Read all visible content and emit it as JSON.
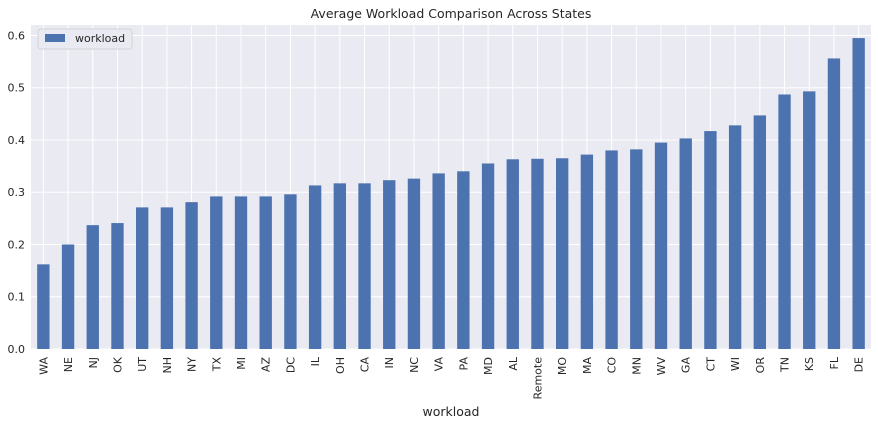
{
  "chart_data": {
    "type": "bar",
    "title": "Average Workload Comparison Across States",
    "xlabel": "workload",
    "ylabel": "",
    "ylim": [
      0,
      0.62
    ],
    "yticks": [
      "0.0",
      "0.1",
      "0.2",
      "0.3",
      "0.4",
      "0.5",
      "0.6"
    ],
    "grid": true,
    "legend": {
      "placement": "top-left",
      "entries": [
        "workload"
      ]
    },
    "categories": [
      "WA",
      "NE",
      "NJ",
      "OK",
      "UT",
      "NH",
      "NY",
      "TX",
      "MI",
      "AZ",
      "DC",
      "IL",
      "OH",
      "CA",
      "IN",
      "NC",
      "VA",
      "PA",
      "MD",
      "AL",
      "Remote",
      "MO",
      "MA",
      "CO",
      "MN",
      "WV",
      "GA",
      "CT",
      "WI",
      "OR",
      "TN",
      "KS",
      "FL",
      "DE"
    ],
    "series": [
      {
        "name": "workload",
        "color": "#4c72b0",
        "values": [
          0.162,
          0.2,
          0.237,
          0.241,
          0.271,
          0.271,
          0.281,
          0.292,
          0.292,
          0.292,
          0.296,
          0.313,
          0.317,
          0.317,
          0.323,
          0.326,
          0.336,
          0.34,
          0.355,
          0.363,
          0.364,
          0.365,
          0.372,
          0.38,
          0.382,
          0.395,
          0.403,
          0.417,
          0.428,
          0.447,
          0.487,
          0.493,
          0.556,
          0.595
        ]
      }
    ]
  },
  "colors": {
    "plot_background": "#eaeaf2",
    "grid": "#ffffff",
    "bar": "#4c72b0"
  }
}
